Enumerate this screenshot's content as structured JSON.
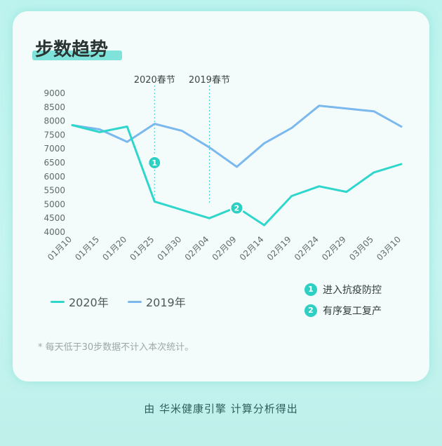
{
  "title": "步数趋势",
  "note": "* 每天低于30步数据不计入本次统计。",
  "credit": "由 华米健康引擎 计算分析得出",
  "colors": {
    "s2020": "#2fd6cc",
    "s2019": "#7ab8ee",
    "badge": "#2fd0c4"
  },
  "chart_data": {
    "type": "line",
    "x": [
      "01月10",
      "01月15",
      "01月20",
      "01月25",
      "01月30",
      "02月04",
      "02月09",
      "02月14",
      "02月19",
      "02月24",
      "02月29",
      "03月05",
      "03月10"
    ],
    "series": [
      {
        "name": "2020年",
        "values": [
          7850,
          7600,
          7800,
          5100,
          4800,
          4500,
          4900,
          4250,
          5300,
          5650,
          5450,
          6150,
          6450
        ]
      },
      {
        "name": "2019年",
        "values": [
          7850,
          7700,
          7250,
          7900,
          7650,
          7050,
          6350,
          7200,
          7750,
          8550,
          8450,
          8350,
          7800
        ]
      }
    ],
    "yticks": [
      "9000",
      "8500",
      "8000",
      "7500",
      "7000",
      "6500",
      "6000",
      "5500",
      "5000",
      "4500",
      "4000"
    ],
    "ylim": [
      4000,
      9000
    ],
    "vlines": [
      {
        "label": "2020春节",
        "at": "01月25"
      },
      {
        "label": "2019春节",
        "at": "02月04"
      }
    ],
    "markers": [
      {
        "num": "1",
        "text": "进入抗疫防控",
        "at": "01月25",
        "value": 6500
      },
      {
        "num": "2",
        "text": "有序复工复产",
        "at": "02月09",
        "value": 4870
      }
    ]
  }
}
